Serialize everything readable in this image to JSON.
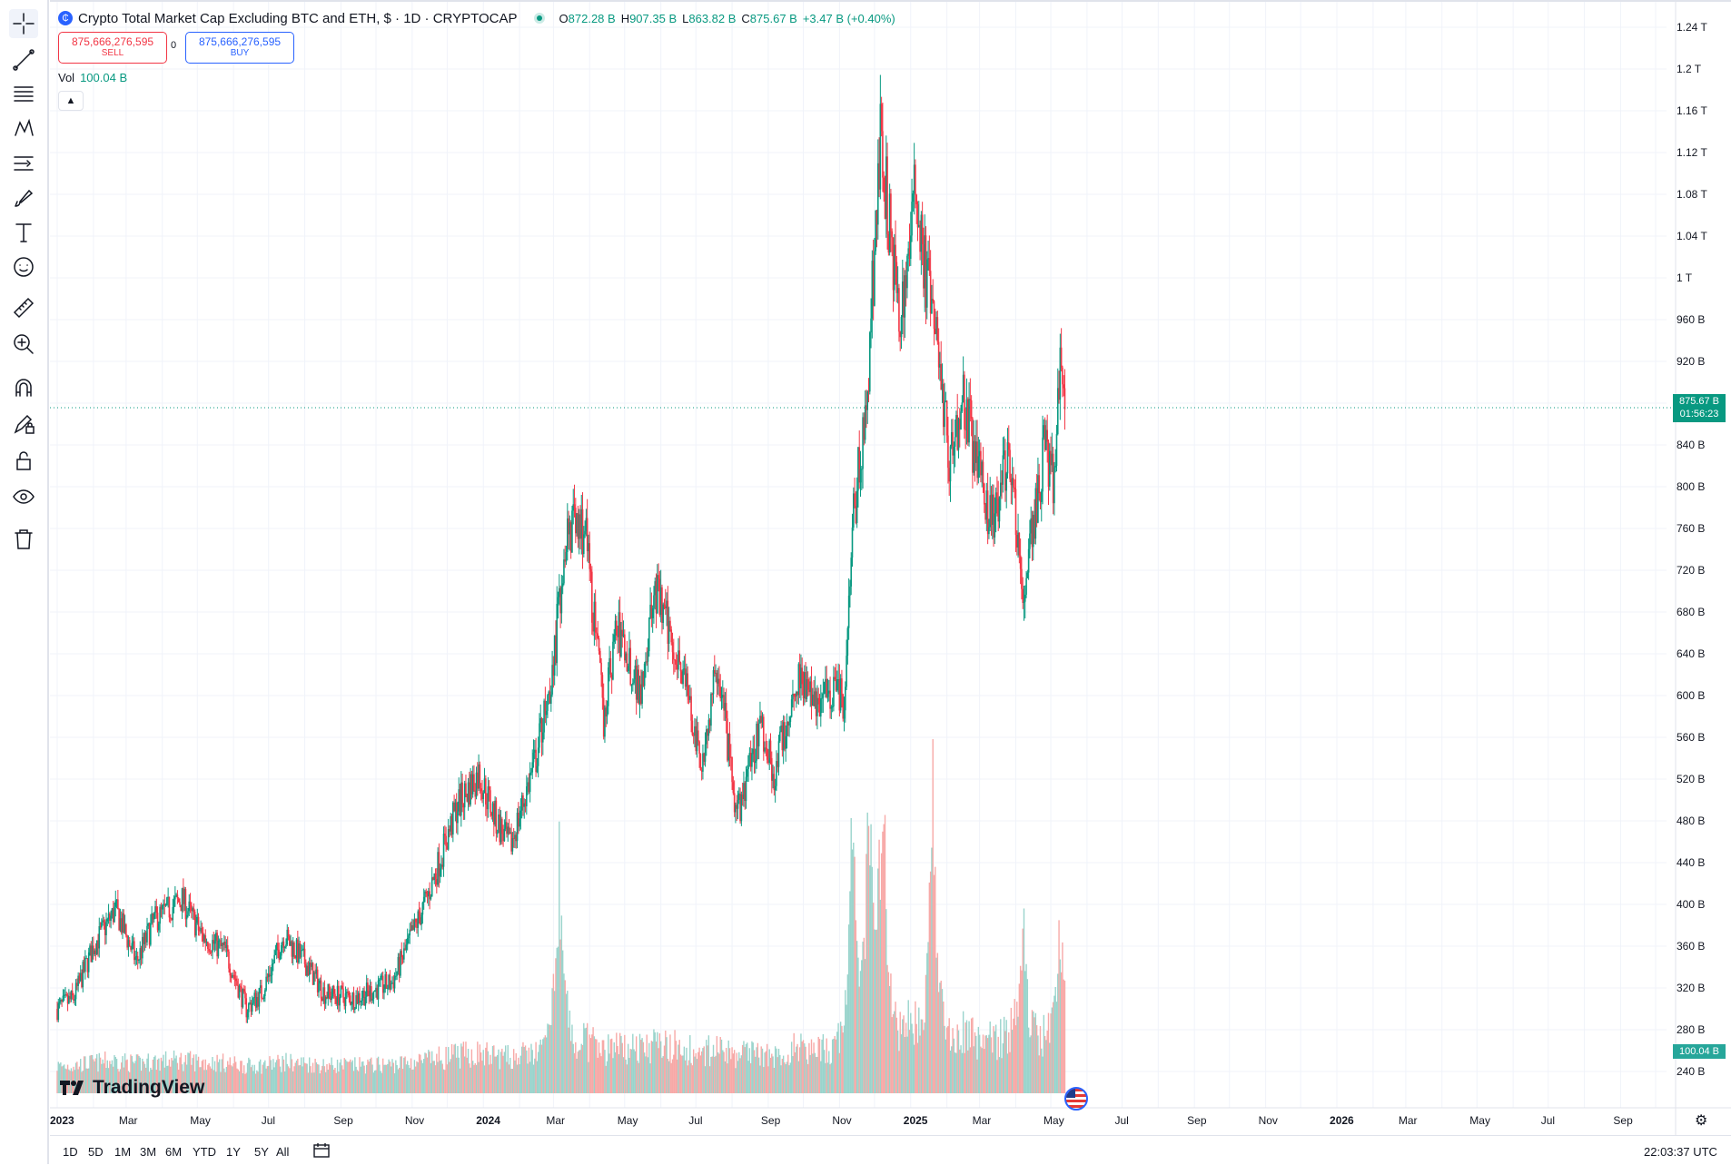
{
  "header": {
    "symbol_title": "Crypto Total Market Cap Excluding BTC and ETH, $ · 1D · CRYPTOCAP",
    "ohlc": [
      {
        "k": "O",
        "v": "872.28 B"
      },
      {
        "k": "H",
        "v": "907.35 B"
      },
      {
        "k": "L",
        "v": "863.82 B"
      },
      {
        "k": "C",
        "v": "875.67 B"
      },
      {
        "k": "",
        "v": "+3.47 B (+0.40%)"
      }
    ]
  },
  "trade": {
    "sell_price": "875,666,276,595",
    "sell_label": "SELL",
    "spread": "0",
    "buy_price": "875,666,276,595",
    "buy_label": "BUY"
  },
  "volume": {
    "label": "Vol",
    "value": "100.04 B"
  },
  "toolbar_tools": [
    "crosshair-icon",
    "trend-line-icon",
    "fib-retracement-icon",
    "pattern-icon",
    "forecast-icon",
    "brush-icon",
    "text-icon",
    "emoji-icon",
    "ruler-icon",
    "zoom-in-icon",
    "magnet-icon",
    "lock-drawing-icon",
    "lock-icon",
    "eye-icon",
    "trash-icon"
  ],
  "price_axis": [
    "1.24 T",
    "1.2 T",
    "1.16 T",
    "1.12 T",
    "1.08 T",
    "1.04 T",
    "1 T",
    "960 B",
    "920 B",
    "880 B",
    "840 B",
    "800 B",
    "760 B",
    "720 B",
    "680 B",
    "640 B",
    "600 B",
    "560 B",
    "520 B",
    "480 B",
    "440 B",
    "400 B",
    "360 B",
    "320 B",
    "280 B",
    "240 B"
  ],
  "time_axis": [
    {
      "label": "2023",
      "bold": true
    },
    {
      "label": "Mar",
      "bold": false
    },
    {
      "label": "May",
      "bold": false
    },
    {
      "label": "Jul",
      "bold": false
    },
    {
      "label": "Sep",
      "bold": false
    },
    {
      "label": "Nov",
      "bold": false
    },
    {
      "label": "2024",
      "bold": true
    },
    {
      "label": "Mar",
      "bold": false
    },
    {
      "label": "May",
      "bold": false
    },
    {
      "label": "Jul",
      "bold": false
    },
    {
      "label": "Sep",
      "bold": false
    },
    {
      "label": "Nov",
      "bold": false
    },
    {
      "label": "2025",
      "bold": true
    },
    {
      "label": "Mar",
      "bold": false
    },
    {
      "label": "May",
      "bold": false
    },
    {
      "label": "Jul",
      "bold": false
    },
    {
      "label": "Sep",
      "bold": false
    },
    {
      "label": "Nov",
      "bold": false
    },
    {
      "label": "2026",
      "bold": true
    },
    {
      "label": "Mar",
      "bold": false
    },
    {
      "label": "May",
      "bold": false
    },
    {
      "label": "Jul",
      "bold": false
    },
    {
      "label": "Sep",
      "bold": false
    }
  ],
  "current_price": {
    "price": "875.67 B",
    "countdown": "01:56:23",
    "value": 875.67
  },
  "volume_tag": "100.04 B",
  "branding": {
    "logo_text": "TradingView"
  },
  "bottom_bar": {
    "ranges": [
      "1D",
      "5D",
      "1M",
      "3M",
      "6M",
      "YTD",
      "1Y",
      "5Y",
      "All"
    ],
    "clock": "22:03:37 UTC"
  },
  "colors": {
    "up": "#089981",
    "down": "#f23645",
    "vol_up": "#9ad4cc",
    "vol_down": "#f7a9a7",
    "accent": "#2962ff"
  },
  "chart_data": {
    "type": "candlestick",
    "series_name": "Crypto Total Market Cap Excluding BTC and ETH",
    "unit": "B USD",
    "ylim": [
      220,
      1260
    ],
    "date_range": [
      "2023-01-01",
      "2025-05-13"
    ],
    "x_range": [
      "2023-01-01",
      "2026-10-01"
    ],
    "anchors": [
      {
        "date": "2023-01-01",
        "close": 300
      },
      {
        "date": "2023-01-15",
        "close": 310
      },
      {
        "date": "2023-02-01",
        "close": 360
      },
      {
        "date": "2023-02-20",
        "close": 395
      },
      {
        "date": "2023-03-10",
        "close": 345
      },
      {
        "date": "2023-03-25",
        "close": 385
      },
      {
        "date": "2023-04-18",
        "close": 405
      },
      {
        "date": "2023-05-05",
        "close": 370
      },
      {
        "date": "2023-05-25",
        "close": 355
      },
      {
        "date": "2023-06-12",
        "close": 300
      },
      {
        "date": "2023-06-25",
        "close": 315
      },
      {
        "date": "2023-07-14",
        "close": 370
      },
      {
        "date": "2023-08-01",
        "close": 345
      },
      {
        "date": "2023-08-18",
        "close": 315
      },
      {
        "date": "2023-09-12",
        "close": 310
      },
      {
        "date": "2023-10-15",
        "close": 325
      },
      {
        "date": "2023-10-28",
        "close": 360
      },
      {
        "date": "2023-11-15",
        "close": 410
      },
      {
        "date": "2023-12-10",
        "close": 495
      },
      {
        "date": "2023-12-28",
        "close": 525
      },
      {
        "date": "2024-01-12",
        "close": 480
      },
      {
        "date": "2024-01-24",
        "close": 455
      },
      {
        "date": "2024-02-15",
        "close": 540
      },
      {
        "date": "2024-03-01",
        "close": 630
      },
      {
        "date": "2024-03-12",
        "close": 760
      },
      {
        "date": "2024-03-28",
        "close": 760
      },
      {
        "date": "2024-04-13",
        "close": 580
      },
      {
        "date": "2024-04-24",
        "close": 665
      },
      {
        "date": "2024-05-14",
        "close": 605
      },
      {
        "date": "2024-05-27",
        "close": 700
      },
      {
        "date": "2024-06-20",
        "close": 625
      },
      {
        "date": "2024-07-05",
        "close": 530
      },
      {
        "date": "2024-07-20",
        "close": 630
      },
      {
        "date": "2024-08-05",
        "close": 480
      },
      {
        "date": "2024-08-25",
        "close": 575
      },
      {
        "date": "2024-09-06",
        "close": 525
      },
      {
        "date": "2024-09-28",
        "close": 625
      },
      {
        "date": "2024-10-10",
        "close": 590
      },
      {
        "date": "2024-10-30",
        "close": 615
      },
      {
        "date": "2024-11-05",
        "close": 590
      },
      {
        "date": "2024-11-12",
        "close": 760
      },
      {
        "date": "2024-11-24",
        "close": 880
      },
      {
        "date": "2024-12-06",
        "close": 1130
      },
      {
        "date": "2024-12-14",
        "close": 1050
      },
      {
        "date": "2024-12-22",
        "close": 950
      },
      {
        "date": "2025-01-06",
        "close": 1090
      },
      {
        "date": "2025-01-14",
        "close": 1000
      },
      {
        "date": "2025-01-26",
        "close": 920
      },
      {
        "date": "2025-02-03",
        "close": 820
      },
      {
        "date": "2025-02-15",
        "close": 890
      },
      {
        "date": "2025-03-02",
        "close": 800
      },
      {
        "date": "2025-03-12",
        "close": 770
      },
      {
        "date": "2025-03-26",
        "close": 830
      },
      {
        "date": "2025-04-07",
        "close": 690
      },
      {
        "date": "2025-04-16",
        "close": 760
      },
      {
        "date": "2025-04-25",
        "close": 835
      },
      {
        "date": "2025-05-03",
        "close": 810
      },
      {
        "date": "2025-05-08",
        "close": 880
      },
      {
        "date": "2025-05-10",
        "close": 940
      },
      {
        "date": "2025-05-13",
        "close": 876
      }
    ],
    "volume_peaks_B": [
      {
        "date": "2024-03-06",
        "volume": 230
      },
      {
        "date": "2024-11-12",
        "volume": 310
      },
      {
        "date": "2024-11-26",
        "volume": 330
      },
      {
        "date": "2024-12-08",
        "volume": 320
      },
      {
        "date": "2025-01-20",
        "volume": 315
      },
      {
        "date": "2025-04-07",
        "volume": 160
      },
      {
        "date": "2025-05-09",
        "volume": 165
      }
    ]
  }
}
